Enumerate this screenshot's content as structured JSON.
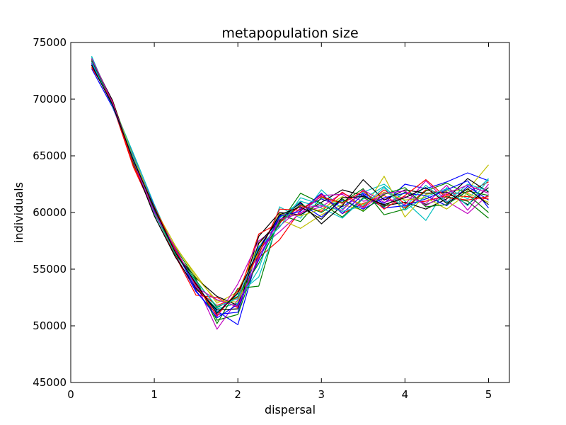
{
  "chart_data": {
    "type": "line",
    "title": "metapopulation size",
    "xlabel": "dispersal",
    "ylabel": "individuals",
    "xlim": [
      0,
      5.25
    ],
    "ylim": [
      45000,
      75000
    ],
    "xticks": [
      0,
      1,
      2,
      3,
      4,
      5
    ],
    "yticks": [
      45000,
      50000,
      55000,
      60000,
      65000,
      70000,
      75000
    ],
    "grid": false,
    "legend": "none",
    "x": [
      0.25,
      0.5,
      0.75,
      1.0,
      1.25,
      1.5,
      1.75,
      2.0,
      2.25,
      2.5,
      2.75,
      3.0,
      3.25,
      3.5,
      3.75,
      4.0,
      4.25,
      4.5,
      4.75,
      5.0
    ],
    "series": [
      {
        "color": "#0000ff",
        "values": [
          73000,
          69600,
          65000,
          60400,
          56800,
          53600,
          51300,
          50100,
          56500,
          59200,
          60300,
          61200,
          60500,
          61700,
          60800,
          62500,
          62100,
          62700,
          63500,
          62800
        ]
      },
      {
        "color": "#008000",
        "values": [
          73200,
          69500,
          64600,
          60100,
          56600,
          53900,
          50500,
          51000,
          56200,
          59000,
          61700,
          60800,
          59600,
          61300,
          60500,
          61800,
          60700,
          61400,
          61000,
          59500
        ]
      },
      {
        "color": "#ff0000",
        "values": [
          73500,
          69800,
          64200,
          60000,
          56200,
          52700,
          52500,
          51600,
          56000,
          57600,
          60200,
          61600,
          59900,
          60800,
          61500,
          60400,
          62000,
          61600,
          61800,
          62700
        ]
      },
      {
        "color": "#00bfbf",
        "values": [
          73800,
          69400,
          64900,
          60500,
          56500,
          53400,
          51500,
          52000,
          55000,
          60500,
          59500,
          62000,
          60300,
          61800,
          62500,
          61000,
          59300,
          62200,
          61200,
          63000
        ]
      },
      {
        "color": "#bf00bf",
        "values": [
          73400,
          69700,
          64400,
          60300,
          56700,
          53700,
          49700,
          52300,
          56800,
          58300,
          60000,
          60500,
          61700,
          61000,
          61200,
          60700,
          62800,
          61000,
          59900,
          61600
        ]
      },
      {
        "color": "#bfbf00",
        "values": [
          73100,
          69900,
          64700,
          59800,
          57000,
          54500,
          52000,
          53000,
          57200,
          59400,
          58600,
          59800,
          60700,
          60200,
          63200,
          59600,
          61600,
          61900,
          62000,
          64200
        ]
      },
      {
        "color": "#000000",
        "values": [
          73300,
          69600,
          64500,
          60200,
          56400,
          54200,
          52600,
          51800,
          57900,
          60000,
          59800,
          60900,
          62000,
          61500,
          60600,
          60900,
          60300,
          61200,
          63000,
          61800
        ]
      },
      {
        "color": "#0000ff",
        "values": [
          72700,
          69300,
          64800,
          60600,
          56300,
          53000,
          51000,
          51200,
          56900,
          59600,
          60800,
          59600,
          61100,
          60300,
          61300,
          61700,
          61500,
          60600,
          62300,
          61100
        ]
      },
      {
        "color": "#008000",
        "values": [
          73600,
          69800,
          64300,
          59900,
          56900,
          54100,
          50200,
          53300,
          53500,
          59800,
          59200,
          61300,
          60900,
          62100,
          59800,
          60300,
          61900,
          62600,
          61600,
          60000
        ]
      },
      {
        "color": "#ff0000",
        "values": [
          73000,
          69500,
          64000,
          60000,
          56200,
          53200,
          51800,
          52500,
          58100,
          59100,
          60600,
          60100,
          61800,
          60500,
          62000,
          60800,
          61000,
          61500,
          61400,
          61200
        ]
      },
      {
        "color": "#00bfbf",
        "values": [
          73700,
          69600,
          65200,
          60700,
          56600,
          53500,
          51200,
          52800,
          54300,
          59500,
          61000,
          60400,
          59500,
          61200,
          62300,
          60500,
          62400,
          60900,
          62500,
          61900
        ]
      },
      {
        "color": "#bf00bf",
        "values": [
          73200,
          69400,
          64600,
          60100,
          56500,
          53800,
          50800,
          53700,
          57500,
          58800,
          60400,
          60600,
          60200,
          62000,
          60900,
          61400,
          60800,
          62400,
          60200,
          62500
        ]
      },
      {
        "color": "#bfbf00",
        "values": [
          72900,
          69700,
          64900,
          60400,
          57100,
          54300,
          52200,
          52100,
          56600,
          59900,
          59700,
          60300,
          61400,
          60700,
          61800,
          61100,
          61300,
          60300,
          61700,
          60900
        ]
      },
      {
        "color": "#000000",
        "values": [
          73400,
          69900,
          64400,
          59700,
          56100,
          53300,
          51400,
          51500,
          57300,
          59300,
          60900,
          59000,
          60600,
          62900,
          61100,
          62000,
          61700,
          61800,
          60700,
          62200
        ]
      },
      {
        "color": "#0000ff",
        "values": [
          73100,
          69500,
          64700,
          60200,
          56800,
          53100,
          50700,
          51900,
          55800,
          59700,
          60100,
          61700,
          59900,
          61600,
          60400,
          60600,
          61200,
          62000,
          62800,
          60400
        ]
      },
      {
        "color": "#008000",
        "values": [
          73500,
          69600,
          64300,
          60300,
          56300,
          54000,
          51600,
          52600,
          55500,
          59200,
          60700,
          60000,
          61200,
          60100,
          61600,
          62200,
          60500,
          60700,
          61900,
          61500
        ]
      },
      {
        "color": "#ff0000",
        "values": [
          72800,
          69800,
          64100,
          60500,
          56700,
          53600,
          50900,
          53100,
          56300,
          60300,
          60200,
          61400,
          60800,
          61900,
          60300,
          61500,
          62900,
          61300,
          61100,
          61400
        ]
      },
      {
        "color": "#00bfbf",
        "values": [
          73300,
          69400,
          64800,
          59900,
          56400,
          53900,
          51700,
          52400,
          57000,
          58700,
          61300,
          60700,
          60100,
          60600,
          62200,
          60200,
          61400,
          62100,
          60600,
          62900
        ]
      },
      {
        "color": "#bf00bf",
        "values": [
          73600,
          69700,
          64500,
          60000,
          56900,
          53400,
          52300,
          51700,
          56100,
          59400,
          59900,
          61500,
          61600,
          60400,
          61700,
          61900,
          60600,
          61700,
          62400,
          61700
        ]
      },
      {
        "color": "#000000",
        "values": [
          73000,
          69500,
          64600,
          60400,
          56500,
          53700,
          51100,
          52900,
          56700,
          59800,
          60500,
          59400,
          61300,
          61400,
          60700,
          61300,
          62200,
          60800,
          62100,
          60700
        ]
      }
    ]
  }
}
